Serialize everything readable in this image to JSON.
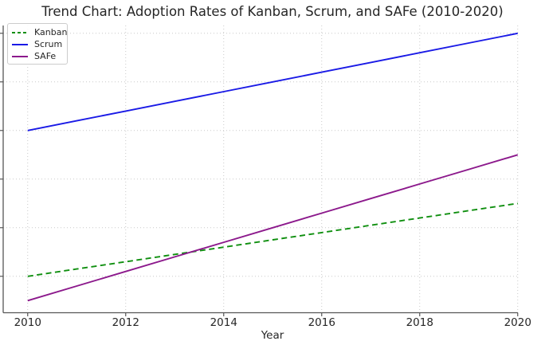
{
  "chart_data": {
    "type": "line",
    "title": "Trend Chart: Adoption Rates of Kanban, Scrum, and SAFe (2010-2020)",
    "xlabel": "Year",
    "ylabel": "",
    "x": [
      2010,
      2011,
      2012,
      2013,
      2014,
      2015,
      2016,
      2017,
      2018,
      2019,
      2020
    ],
    "series": [
      {
        "name": "Kanban",
        "color": "#0f8f0f",
        "dash": "dashed",
        "values": [
          20,
          21.5,
          23,
          24.5,
          26,
          27.5,
          29,
          30.5,
          32,
          33.5,
          35
        ]
      },
      {
        "name": "Scrum",
        "color": "#1a1ae6",
        "dash": "solid",
        "values": [
          50,
          52,
          54,
          56,
          58,
          60,
          62,
          64,
          66,
          68,
          70
        ]
      },
      {
        "name": "SAFe",
        "color": "#8c198c",
        "dash": "solid",
        "values": [
          15,
          18,
          21,
          24,
          27,
          30,
          33,
          36,
          39,
          42,
          45
        ]
      }
    ],
    "xlim": [
      2009.5,
      2020.5
    ],
    "ylim": [
      12.5,
      71.6
    ],
    "x_ticks": {
      "values": [
        2010,
        2012,
        2014,
        2016,
        2018,
        2020
      ],
      "labels": [
        "2010",
        "2012",
        "2014",
        "2016",
        "2018",
        "2020"
      ]
    },
    "y_gridline_values": [
      20,
      30,
      40,
      50,
      60,
      70
    ],
    "y_tick_labels_visible": false,
    "grid": "dotted",
    "legend_position": "upper left"
  },
  "colors": {
    "gridline": "#c9c9c9",
    "spine": "#565656",
    "text": "#262626",
    "legend_border": "#cccccc",
    "background": "#ffffff"
  }
}
